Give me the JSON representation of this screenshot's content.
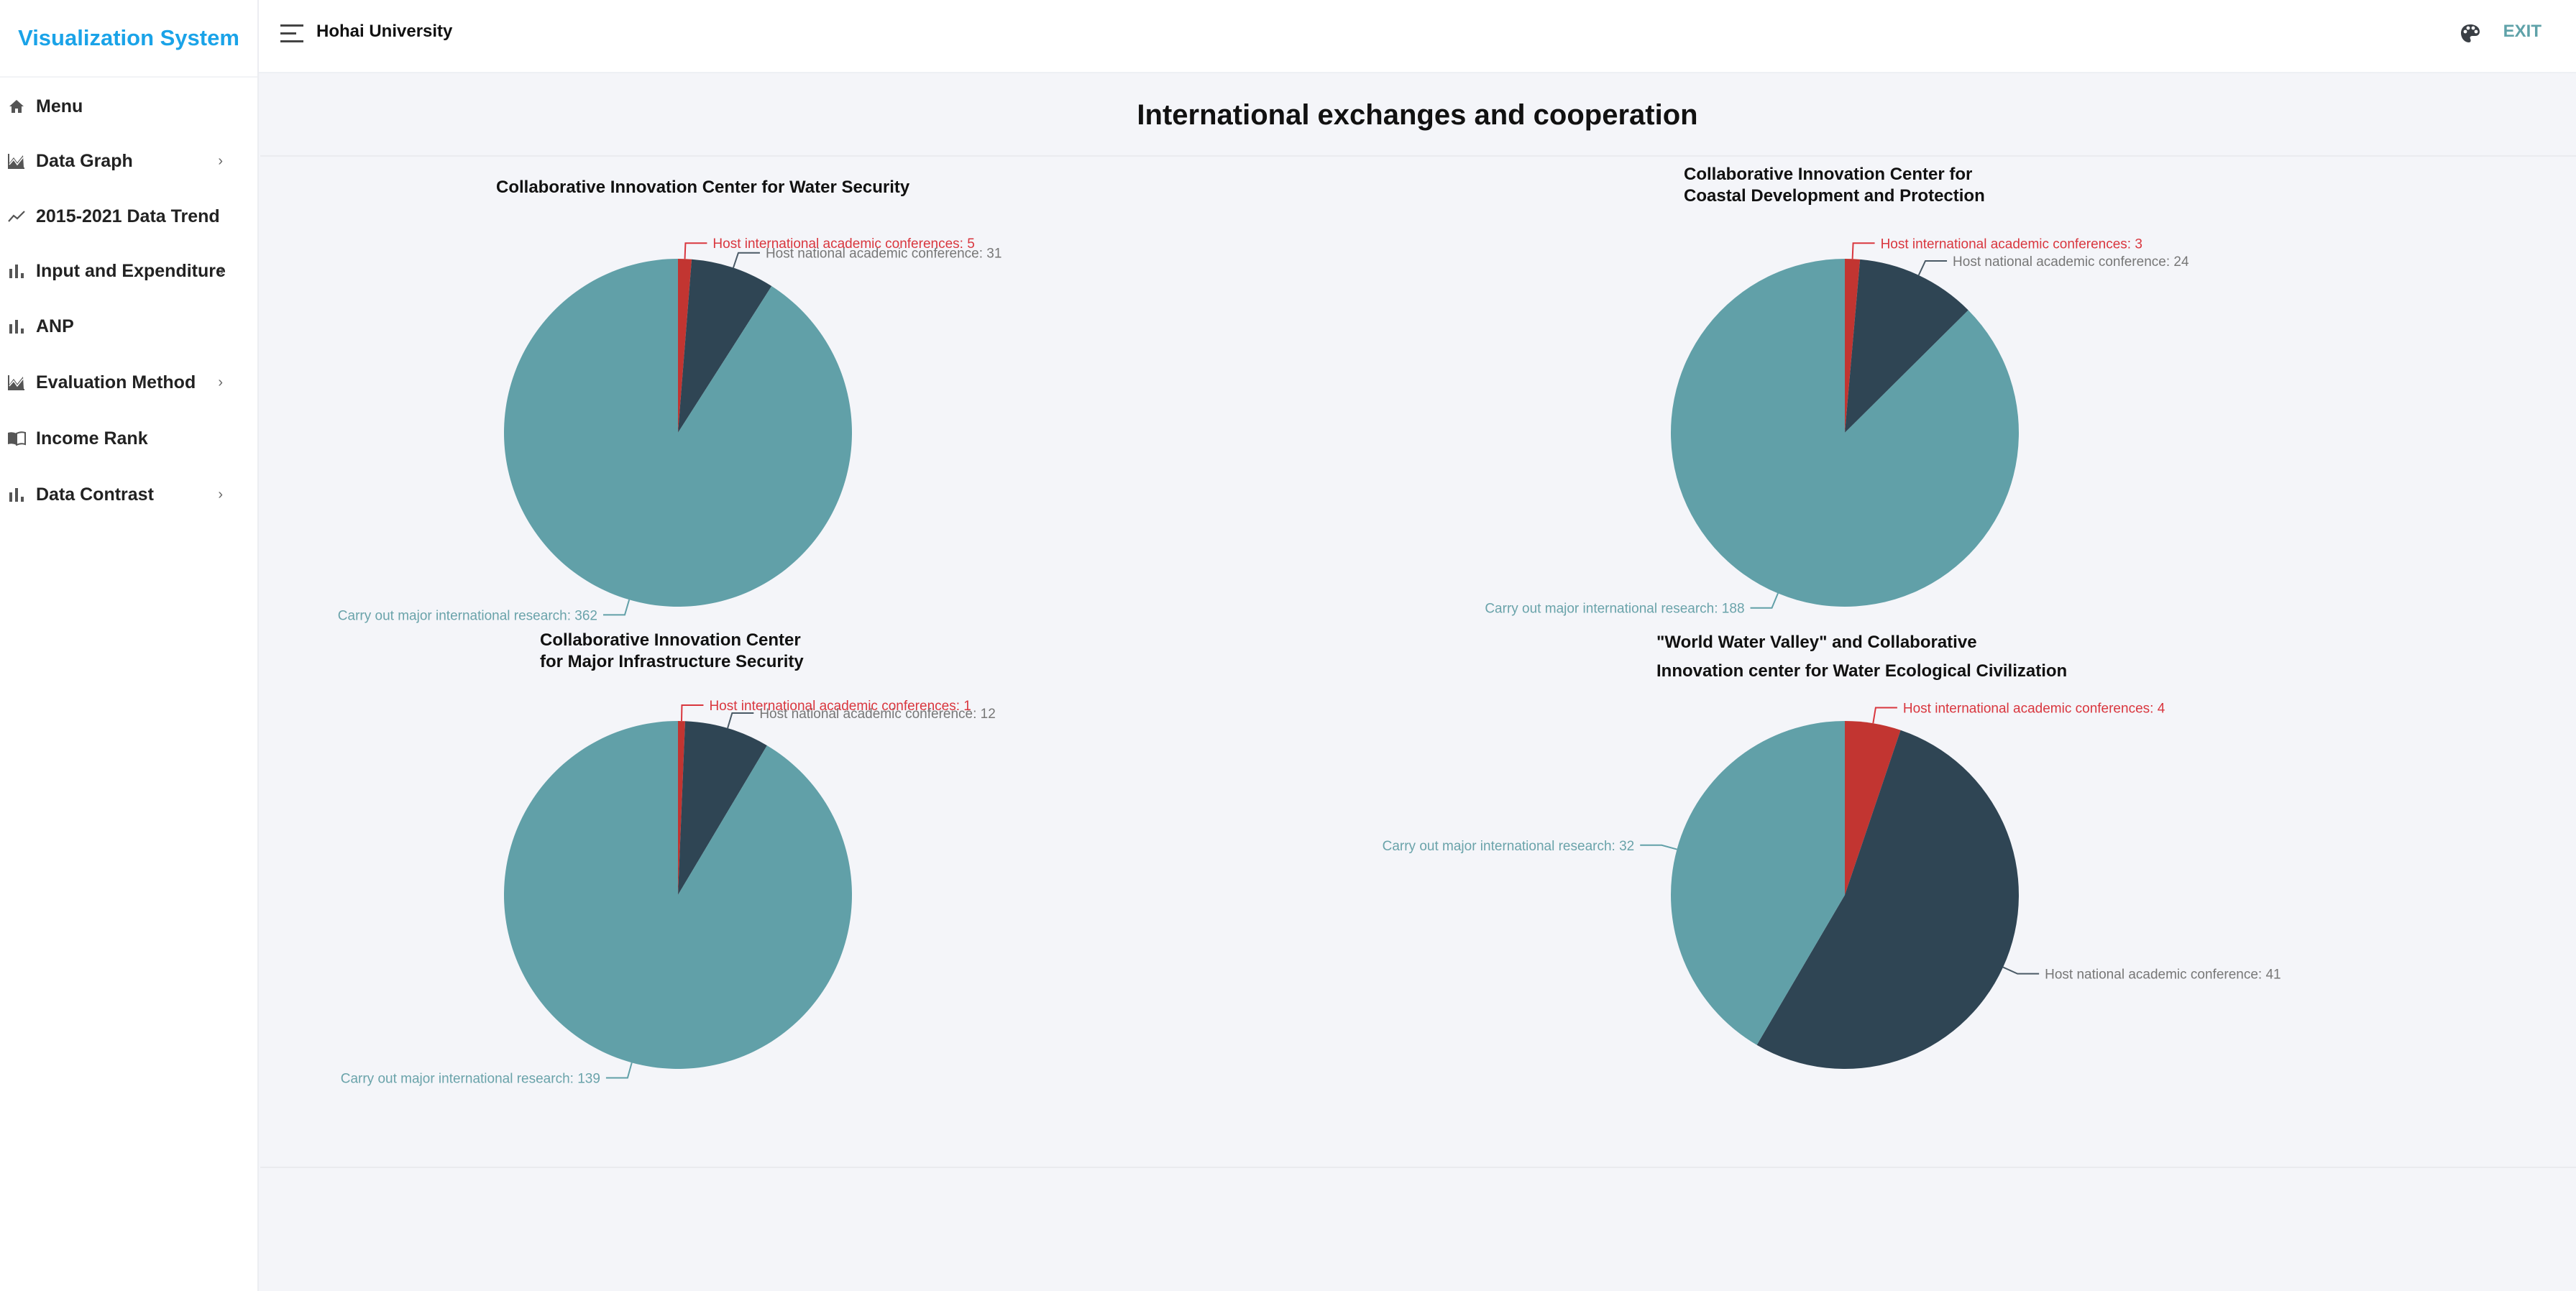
{
  "sidebar": {
    "brand": "Visualization System",
    "items": [
      {
        "label": "Menu",
        "icon": "home-icon",
        "has_submenu": false
      },
      {
        "label": "Data Graph",
        "icon": "area-chart-icon",
        "has_submenu": true
      },
      {
        "label": "2015-2021 Data Trend",
        "icon": "line-chart-icon",
        "has_submenu": false
      },
      {
        "label": "Input and Expenditure",
        "icon": "bar-chart-icon",
        "has_submenu": true
      },
      {
        "label": "ANP",
        "icon": "bar-chart-icon",
        "has_submenu": false
      },
      {
        "label": "Evaluation Method",
        "icon": "area-chart-icon",
        "has_submenu": true
      },
      {
        "label": "Income Rank",
        "icon": "book-icon",
        "has_submenu": false
      },
      {
        "label": "Data Contrast",
        "icon": "bar-chart-icon",
        "has_submenu": true
      }
    ],
    "chevron": "›"
  },
  "header": {
    "title": "Hohai University",
    "exit_label": "EXIT"
  },
  "main": {
    "title": "International exchanges and cooperation"
  },
  "colors": {
    "international_conferences": "#c23531",
    "national_conference": "#2f4554",
    "international_research": "#61a0a8",
    "brand": "#1aa3e8",
    "exit": "#5fa2a9"
  },
  "chart_data": [
    {
      "type": "pie",
      "title": "Collaborative Innovation Center for Water Security",
      "title_lines": [
        "Collaborative Innovation Center for Water Security"
      ],
      "categories": [
        "Host international academic conferences",
        "Host national academic conference",
        "Carry out major international research"
      ],
      "values": [
        5,
        31,
        362
      ],
      "labels": [
        "Host international academic conferences: 5",
        "Host national academic conference: 31",
        "Carry out major international research: 362"
      ]
    },
    {
      "type": "pie",
      "title": "Collaborative Innovation Center for Coastal Development and Protection",
      "title_lines": [
        "Collaborative Innovation Center for",
        "Coastal Development and Protection"
      ],
      "categories": [
        "Host international academic conferences",
        "Host national academic conference",
        "Carry out major international research"
      ],
      "values": [
        3,
        24,
        188
      ],
      "labels": [
        "Host international academic conferences: 3",
        "Host national academic conference: 24",
        "Carry out major international research: 188"
      ]
    },
    {
      "type": "pie",
      "title": "Collaborative Innovation Center for Major Infrastructure Security",
      "title_lines": [
        "Collaborative Innovation Center",
        "for Major Infrastructure Security"
      ],
      "categories": [
        "Host international academic conferences",
        "Host national academic conference",
        "Carry out major international research"
      ],
      "values": [
        1,
        12,
        139
      ],
      "labels": [
        "Host international academic conferences:  1",
        "Host national academic conference: 12",
        "Carry out major international research: 139"
      ]
    },
    {
      "type": "pie",
      "title": "\"World Water Valley\" and Collaborative Innovation center for Water Ecological Civilization",
      "title_lines": [
        "\"World Water Valley\" and  Collaborative",
        "Innovation center for Water Ecological Civilization"
      ],
      "categories": [
        "Host international academic conferences",
        "Host national academic conference",
        "Carry out major international research"
      ],
      "values": [
        4,
        41,
        32
      ],
      "labels": [
        "Host international academic conferences: 4",
        "Host national academic conference: 41",
        "Carry out major international research: 32"
      ]
    }
  ]
}
